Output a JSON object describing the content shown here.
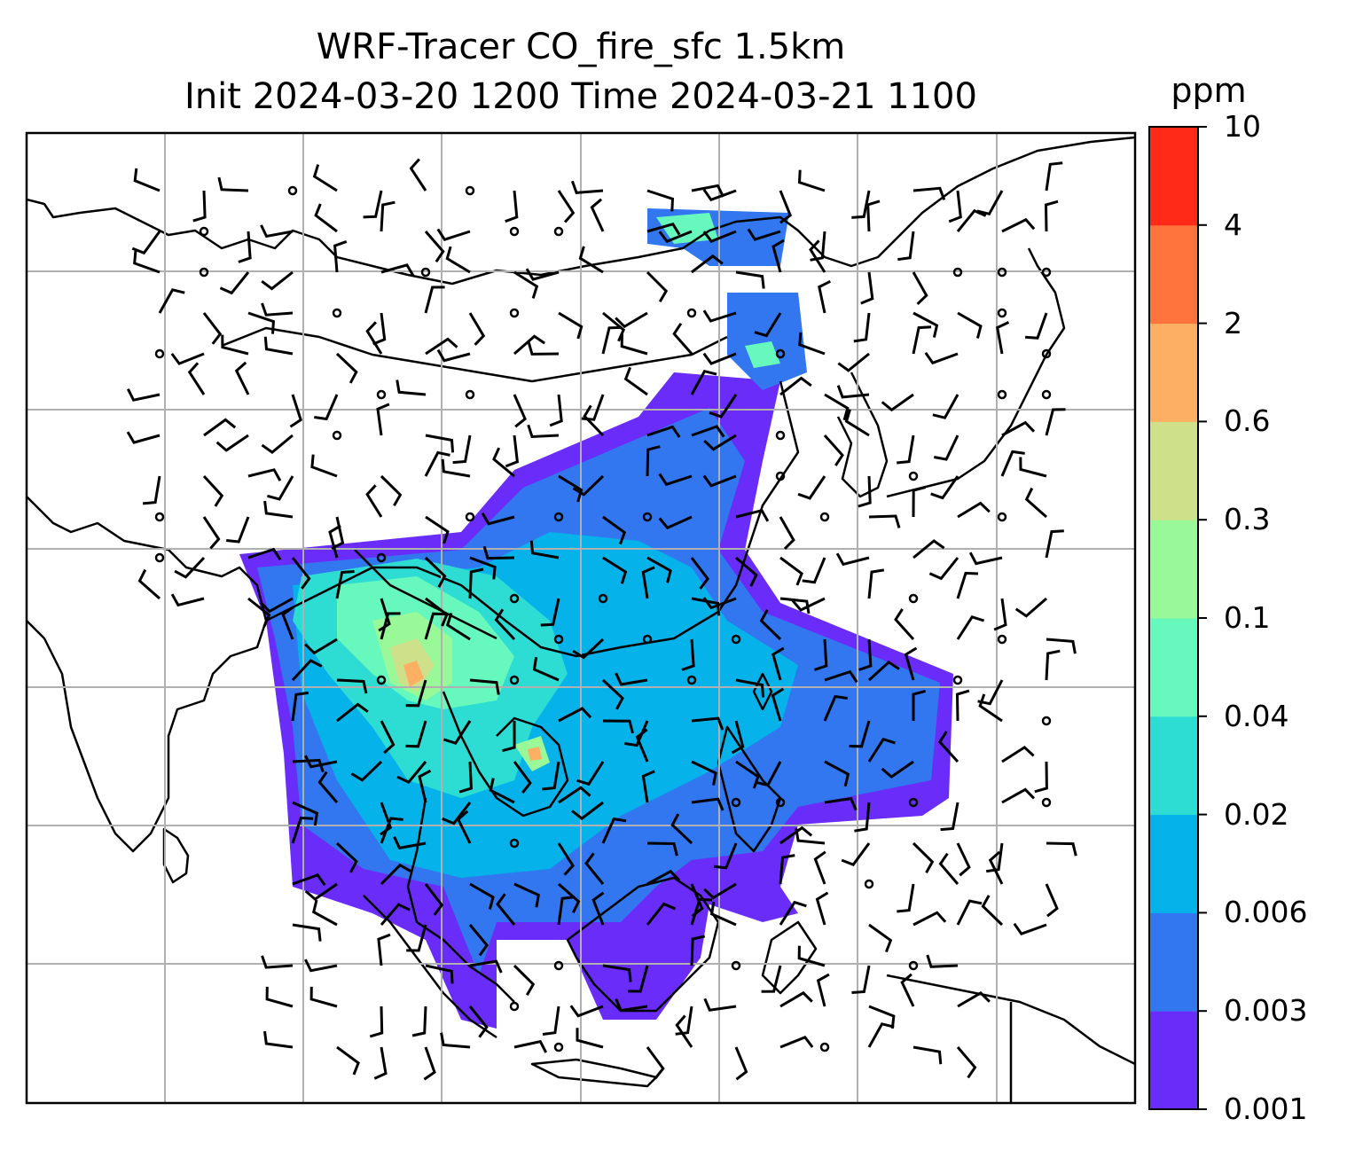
{
  "title": {
    "line1": "WRF-Tracer CO_fire_sfc 1.5km",
    "line2": "Init 2024-03-20 1200 Time 2024-03-21 1100"
  },
  "colorbar": {
    "unit": "ppm",
    "levels": [
      "0.001",
      "0.003",
      "0.006",
      "0.02",
      "0.04",
      "0.1",
      "0.3",
      "0.6",
      "2",
      "4",
      "10"
    ],
    "colors": [
      "#6a2cf8",
      "#3276f0",
      "#05b2ea",
      "#2ddcd2",
      "#66f8bd",
      "#99f898",
      "#cfe08a",
      "#fdb063",
      "#ff733c",
      "#ff2a17"
    ]
  },
  "map": {
    "type": "filled-contour with wind barbs",
    "variable": "CO_fire_sfc",
    "gridlines": true,
    "coastlines": true,
    "country_borders": true,
    "wind_barbs": true
  }
}
